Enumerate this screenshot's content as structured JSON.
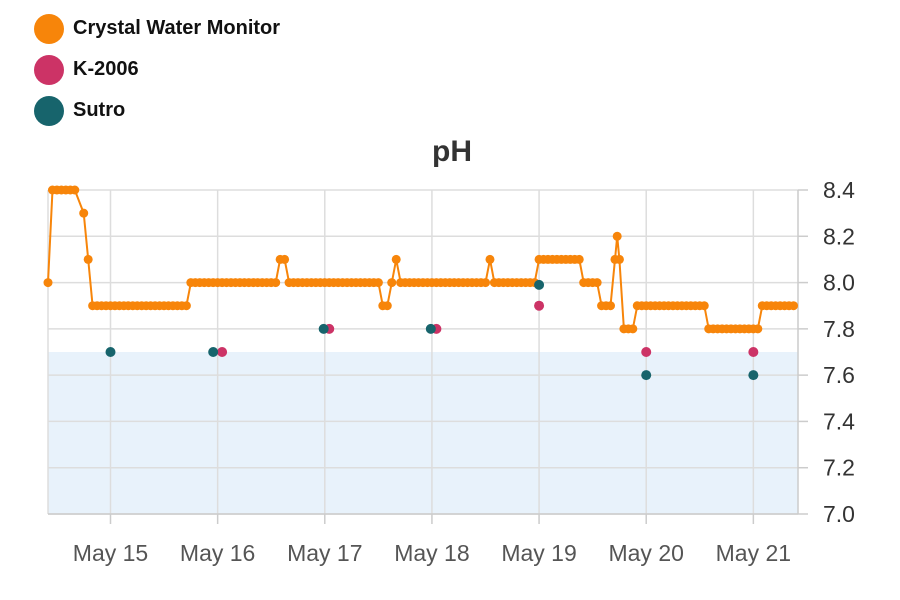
{
  "chart_data": {
    "type": "line",
    "title": "pH",
    "xlabel": "",
    "ylabel": "",
    "ylim": [
      7.0,
      8.4
    ],
    "yticks": [
      "7.0",
      "7.2",
      "7.4",
      "7.6",
      "7.8",
      "8.0",
      "8.2",
      "8.4"
    ],
    "xlim": [
      "2020-05-14T10:00",
      "2020-05-21T10:00"
    ],
    "xticks": [
      {
        "date": "2020-05-15",
        "label": "May 15"
      },
      {
        "date": "2020-05-16",
        "label": "May 16"
      },
      {
        "date": "2020-05-17",
        "label": "May 17"
      },
      {
        "date": "2020-05-18",
        "label": "May 18"
      },
      {
        "date": "2020-05-19",
        "label": "May 19"
      },
      {
        "date": "2020-05-20",
        "label": "May 20"
      },
      {
        "date": "2020-05-21",
        "label": "May 21"
      }
    ],
    "grid": true,
    "legend": "top-left",
    "reference_band": {
      "y_from": 7.0,
      "y_to": 7.7,
      "color": "#e8f2fb"
    },
    "series": [
      {
        "name": "Crystal Water Monitor",
        "color": "#f7850a",
        "style": "line-markers",
        "points": [
          {
            "x": "2020-05-14T10:00",
            "y": 8.0
          },
          {
            "x": "2020-05-14T11:00",
            "y": 8.4
          },
          {
            "x": "2020-05-14T16:00",
            "y": 8.4
          },
          {
            "x": "2020-05-14T18:00",
            "y": 8.3
          },
          {
            "x": "2020-05-14T19:00",
            "y": 8.1
          },
          {
            "x": "2020-05-14T20:00",
            "y": 7.9
          },
          {
            "x": "2020-05-15T17:00",
            "y": 7.9
          },
          {
            "x": "2020-05-15T18:00",
            "y": 8.0
          },
          {
            "x": "2020-05-16T13:00",
            "y": 8.0
          },
          {
            "x": "2020-05-16T14:00",
            "y": 8.1
          },
          {
            "x": "2020-05-16T15:00",
            "y": 8.1
          },
          {
            "x": "2020-05-16T16:00",
            "y": 8.0
          },
          {
            "x": "2020-05-17T12:00",
            "y": 8.0
          },
          {
            "x": "2020-05-17T13:00",
            "y": 7.9
          },
          {
            "x": "2020-05-17T14:00",
            "y": 7.9
          },
          {
            "x": "2020-05-17T15:00",
            "y": 8.0
          },
          {
            "x": "2020-05-17T16:00",
            "y": 8.1
          },
          {
            "x": "2020-05-17T17:00",
            "y": 8.0
          },
          {
            "x": "2020-05-18T12:00",
            "y": 8.0
          },
          {
            "x": "2020-05-18T13:00",
            "y": 8.1
          },
          {
            "x": "2020-05-18T14:00",
            "y": 8.0
          },
          {
            "x": "2020-05-18T23:00",
            "y": 8.0
          },
          {
            "x": "2020-05-19T00:00",
            "y": 8.1
          },
          {
            "x": "2020-05-19T09:00",
            "y": 8.1
          },
          {
            "x": "2020-05-19T10:00",
            "y": 8.0
          },
          {
            "x": "2020-05-19T13:00",
            "y": 8.0
          },
          {
            "x": "2020-05-19T14:00",
            "y": 7.9
          },
          {
            "x": "2020-05-19T16:00",
            "y": 7.9
          },
          {
            "x": "2020-05-19T17:00",
            "y": 8.1
          },
          {
            "x": "2020-05-19T17:30",
            "y": 8.2
          },
          {
            "x": "2020-05-19T18:00",
            "y": 8.1
          },
          {
            "x": "2020-05-19T19:00",
            "y": 7.8
          },
          {
            "x": "2020-05-19T21:00",
            "y": 7.8
          },
          {
            "x": "2020-05-19T22:00",
            "y": 7.9
          },
          {
            "x": "2020-05-20T13:00",
            "y": 7.9
          },
          {
            "x": "2020-05-20T14:00",
            "y": 7.8
          },
          {
            "x": "2020-05-21T01:00",
            "y": 7.8
          },
          {
            "x": "2020-05-21T02:00",
            "y": 7.9
          },
          {
            "x": "2020-05-21T09:00",
            "y": 7.9
          }
        ]
      },
      {
        "name": "K-2006",
        "color": "#cc3366",
        "style": "markers",
        "points": [
          {
            "x": "2020-05-16T01:00",
            "y": 7.7
          },
          {
            "x": "2020-05-17T01:00",
            "y": 7.8
          },
          {
            "x": "2020-05-18T01:00",
            "y": 7.8
          },
          {
            "x": "2020-05-19T00:00",
            "y": 7.9
          },
          {
            "x": "2020-05-20T00:00",
            "y": 7.7
          },
          {
            "x": "2020-05-21T00:00",
            "y": 7.7
          }
        ]
      },
      {
        "name": "Sutro",
        "color": "#17646c",
        "style": "markers",
        "points": [
          {
            "x": "2020-05-15T00:00",
            "y": 7.7
          },
          {
            "x": "2020-05-15T23:00",
            "y": 7.7
          },
          {
            "x": "2020-05-16T23:45",
            "y": 7.8
          },
          {
            "x": "2020-05-17T23:45",
            "y": 7.8
          },
          {
            "x": "2020-05-19T00:00",
            "y": 7.99
          },
          {
            "x": "2020-05-20T00:00",
            "y": 7.6
          },
          {
            "x": "2020-05-21T00:00",
            "y": 7.6
          }
        ]
      }
    ]
  }
}
